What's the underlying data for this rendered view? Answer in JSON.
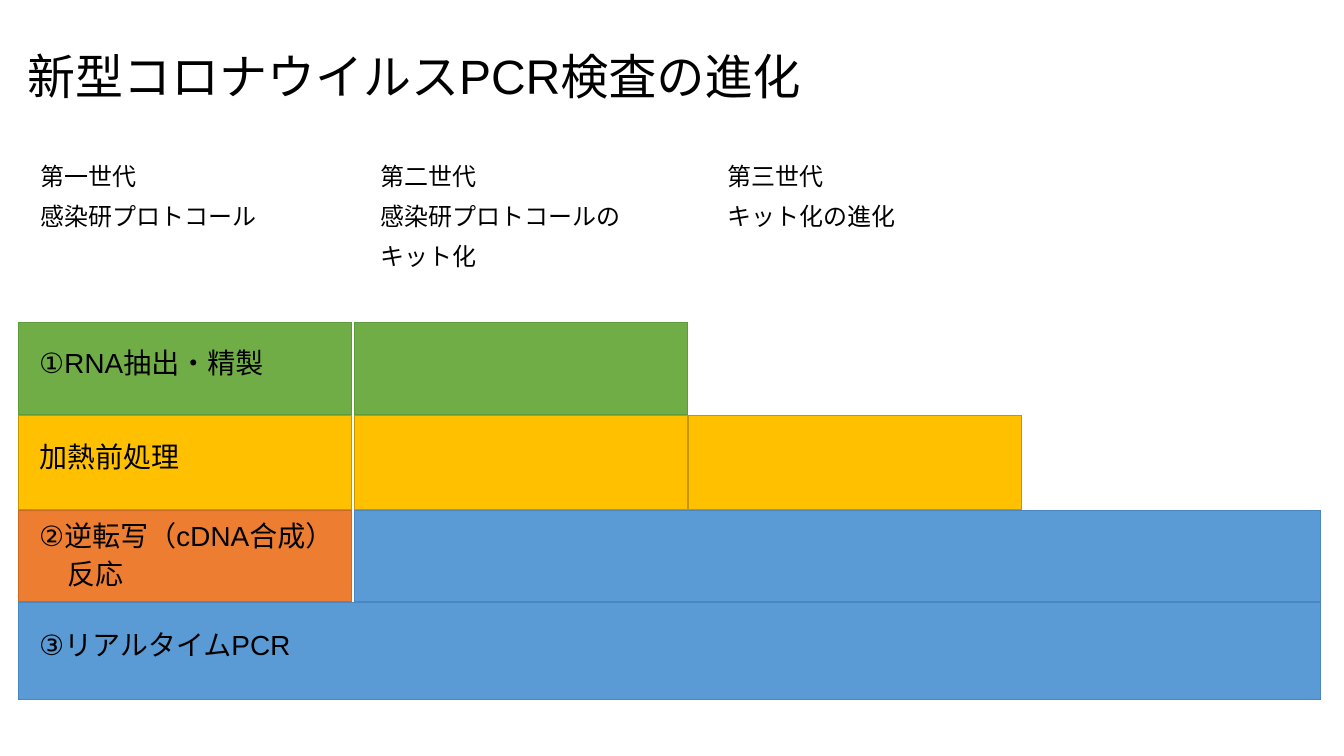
{
  "title": "新型コロナウイルスPCR検査の進化",
  "generations": [
    {
      "name": "第一世代",
      "desc": "感染研プロトコール"
    },
    {
      "name": "第二世代",
      "desc": "感染研プロトコールの\nキット化"
    },
    {
      "name": "第三世代",
      "desc": "キット化の進化"
    }
  ],
  "steps": [
    {
      "label": "①RNA抽出・精製",
      "color_key": "green",
      "spans_generations": [
        "第一世代",
        "第二世代"
      ]
    },
    {
      "label": "加熱前処理",
      "color_key": "yellow",
      "spans_generations": [
        "第一世代",
        "第二世代",
        "第三世代"
      ]
    },
    {
      "label": "②逆転写（cDNA合成）\n　反応",
      "color_key": "orange",
      "spans_generations": [
        "第一世代"
      ]
    },
    {
      "label": "③リアルタイムPCR",
      "color_key": "blue",
      "spans_generations": [
        "第一世代",
        "第二世代",
        "第三世代"
      ]
    }
  ],
  "colors": {
    "green": "#70AD47",
    "green_border": "#5E9A3D",
    "yellow": "#FFC000",
    "yellow_border": "#C79500",
    "orange": "#ED7D31",
    "orange_border": "#C96A24",
    "blue": "#5B9BD5",
    "blue_border": "#4A86BF",
    "text": "#000000",
    "background": "#FFFFFF"
  }
}
